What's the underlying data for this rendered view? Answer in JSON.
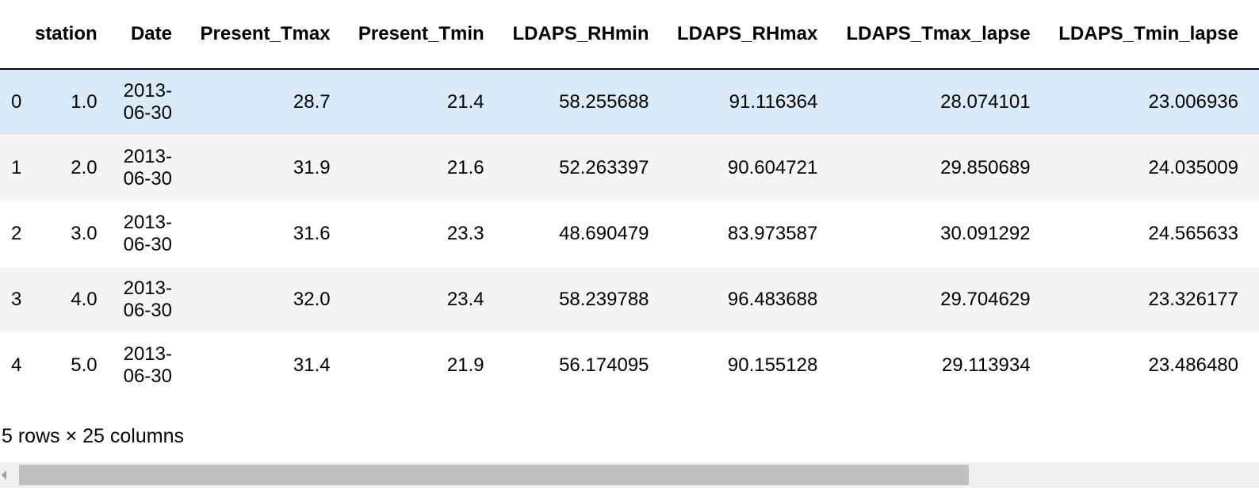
{
  "table": {
    "headers": [
      "",
      "station",
      "Date",
      "Present_Tmax",
      "Present_Tmin",
      "LDAPS_RHmin",
      "LDAPS_RHmax",
      "LDAPS_Tmax_lapse",
      "LDAPS_Tmin_lapse"
    ],
    "rows": [
      {
        "index": "0",
        "station": "1.0",
        "date_line1": "2013-",
        "date_line2": "06-30",
        "present_tmax": "28.7",
        "present_tmin": "21.4",
        "ldaps_rhmin": "58.255688",
        "ldaps_rhmax": "91.116364",
        "ldaps_tmax_lapse": "28.074101",
        "ldaps_tmin_lapse": "23.006936"
      },
      {
        "index": "1",
        "station": "2.0",
        "date_line1": "2013-",
        "date_line2": "06-30",
        "present_tmax": "31.9",
        "present_tmin": "21.6",
        "ldaps_rhmin": "52.263397",
        "ldaps_rhmax": "90.604721",
        "ldaps_tmax_lapse": "29.850689",
        "ldaps_tmin_lapse": "24.035009"
      },
      {
        "index": "2",
        "station": "3.0",
        "date_line1": "2013-",
        "date_line2": "06-30",
        "present_tmax": "31.6",
        "present_tmin": "23.3",
        "ldaps_rhmin": "48.690479",
        "ldaps_rhmax": "83.973587",
        "ldaps_tmax_lapse": "30.091292",
        "ldaps_tmin_lapse": "24.565633"
      },
      {
        "index": "3",
        "station": "4.0",
        "date_line1": "2013-",
        "date_line2": "06-30",
        "present_tmax": "32.0",
        "present_tmin": "23.4",
        "ldaps_rhmin": "58.239788",
        "ldaps_rhmax": "96.483688",
        "ldaps_tmax_lapse": "29.704629",
        "ldaps_tmin_lapse": "23.326177"
      },
      {
        "index": "4",
        "station": "5.0",
        "date_line1": "2013-",
        "date_line2": "06-30",
        "present_tmax": "31.4",
        "present_tmin": "21.9",
        "ldaps_rhmin": "56.174095",
        "ldaps_rhmax": "90.155128",
        "ldaps_tmax_lapse": "29.113934",
        "ldaps_tmin_lapse": "23.486480"
      }
    ],
    "highlight_color": "#d9ebf8",
    "stripe_color": "#f5f5f5"
  },
  "summary": "5 rows × 25 columns",
  "scrollbar": {
    "left_arrow_icon": "chevron-left-icon",
    "thumb_color": "#c1c1c1",
    "track_color": "#f0f0f0"
  }
}
